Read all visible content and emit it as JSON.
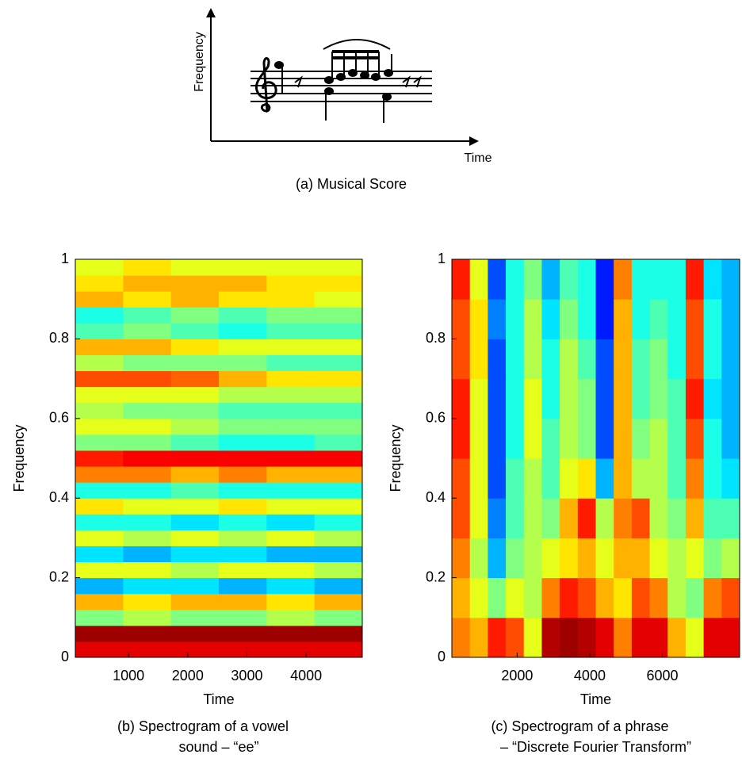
{
  "diagram": {
    "y_label": "Frequency",
    "x_label": "Time",
    "caption": "(a) Musical Score"
  },
  "chart_data": [
    {
      "type": "heatmap",
      "colormap": "jet",
      "zlim": [
        0,
        1
      ],
      "x_label": "Time",
      "y_label": "Frequency",
      "caption": [
        "(b) Spectrogram of a vowel",
        "sound – “ee”"
      ],
      "xlim": [
        100,
        4950
      ],
      "ylim": [
        0,
        1
      ],
      "xticks": [
        1000,
        2000,
        3000,
        4000
      ],
      "yticks": [
        0,
        0.2,
        0.4,
        0.6,
        0.8,
        1
      ],
      "z": [
        [
          0.9,
          0.9,
          0.9,
          0.9,
          0.9,
          0.9
        ],
        [
          0.97,
          0.97,
          0.97,
          0.97,
          0.97,
          0.97
        ],
        [
          0.5,
          0.55,
          0.5,
          0.5,
          0.55,
          0.5
        ],
        [
          0.7,
          0.65,
          0.7,
          0.7,
          0.65,
          0.7
        ],
        [
          0.3,
          0.35,
          0.35,
          0.3,
          0.35,
          0.3
        ],
        [
          0.6,
          0.6,
          0.55,
          0.6,
          0.6,
          0.55
        ],
        [
          0.35,
          0.3,
          0.35,
          0.35,
          0.3,
          0.3
        ],
        [
          0.6,
          0.55,
          0.6,
          0.55,
          0.6,
          0.55
        ],
        [
          0.4,
          0.4,
          0.35,
          0.4,
          0.35,
          0.4
        ],
        [
          0.65,
          0.6,
          0.6,
          0.65,
          0.6,
          0.6
        ],
        [
          0.4,
          0.4,
          0.45,
          0.4,
          0.4,
          0.4
        ],
        [
          0.75,
          0.75,
          0.7,
          0.75,
          0.7,
          0.7
        ],
        [
          0.85,
          0.88,
          0.88,
          0.88,
          0.88,
          0.88
        ],
        [
          0.5,
          0.5,
          0.45,
          0.4,
          0.4,
          0.45
        ],
        [
          0.6,
          0.6,
          0.55,
          0.5,
          0.5,
          0.5
        ],
        [
          0.55,
          0.5,
          0.5,
          0.45,
          0.45,
          0.45
        ],
        [
          0.6,
          0.6,
          0.6,
          0.55,
          0.55,
          0.55
        ],
        [
          0.8,
          0.8,
          0.78,
          0.7,
          0.65,
          0.65
        ],
        [
          0.55,
          0.5,
          0.5,
          0.5,
          0.45,
          0.45
        ],
        [
          0.7,
          0.7,
          0.65,
          0.6,
          0.6,
          0.6
        ],
        [
          0.45,
          0.5,
          0.45,
          0.4,
          0.45,
          0.45
        ],
        [
          0.4,
          0.45,
          0.5,
          0.45,
          0.5,
          0.5
        ],
        [
          0.7,
          0.65,
          0.7,
          0.65,
          0.65,
          0.6
        ],
        [
          0.65,
          0.7,
          0.7,
          0.7,
          0.65,
          0.65
        ],
        [
          0.6,
          0.65,
          0.6,
          0.6,
          0.6,
          0.6
        ]
      ]
    },
    {
      "type": "heatmap",
      "colormap": "jet",
      "zlim": [
        0,
        1
      ],
      "x_label": "Time",
      "y_label": "Frequency",
      "caption": [
        "(c) Spectrogram of a phrase",
        "– “Discrete Fourier Transform”"
      ],
      "xlim": [
        200,
        8130
      ],
      "ylim": [
        0,
        1
      ],
      "xticks": [
        2000,
        4000,
        6000
      ],
      "yticks": [
        0,
        0.2,
        0.4,
        0.6,
        0.8,
        1
      ],
      "z": [
        [
          0.75,
          0.7,
          0.85,
          0.8,
          0.6,
          0.95,
          0.97,
          0.95,
          0.9,
          0.75,
          0.9,
          0.9,
          0.7,
          0.6,
          0.9,
          0.9
        ],
        [
          0.7,
          0.6,
          0.5,
          0.6,
          0.55,
          0.75,
          0.85,
          0.8,
          0.7,
          0.65,
          0.8,
          0.75,
          0.55,
          0.5,
          0.75,
          0.8
        ],
        [
          0.75,
          0.55,
          0.3,
          0.5,
          0.55,
          0.6,
          0.65,
          0.7,
          0.6,
          0.7,
          0.7,
          0.6,
          0.55,
          0.6,
          0.5,
          0.55
        ],
        [
          0.8,
          0.6,
          0.25,
          0.45,
          0.55,
          0.5,
          0.7,
          0.85,
          0.55,
          0.75,
          0.8,
          0.55,
          0.5,
          0.7,
          0.45,
          0.45
        ],
        [
          0.8,
          0.6,
          0.2,
          0.45,
          0.55,
          0.45,
          0.6,
          0.65,
          0.3,
          0.7,
          0.55,
          0.55,
          0.45,
          0.75,
          0.4,
          0.35
        ],
        [
          0.85,
          0.6,
          0.2,
          0.4,
          0.6,
          0.45,
          0.55,
          0.5,
          0.2,
          0.7,
          0.5,
          0.55,
          0.45,
          0.8,
          0.4,
          0.3
        ],
        [
          0.85,
          0.6,
          0.2,
          0.4,
          0.6,
          0.4,
          0.55,
          0.5,
          0.2,
          0.7,
          0.45,
          0.5,
          0.45,
          0.85,
          0.35,
          0.3
        ],
        [
          0.8,
          0.65,
          0.2,
          0.4,
          0.55,
          0.4,
          0.55,
          0.45,
          0.2,
          0.7,
          0.45,
          0.5,
          0.4,
          0.8,
          0.4,
          0.3
        ],
        [
          0.8,
          0.65,
          0.25,
          0.4,
          0.55,
          0.35,
          0.5,
          0.4,
          0.15,
          0.7,
          0.4,
          0.45,
          0.4,
          0.8,
          0.4,
          0.3
        ],
        [
          0.85,
          0.6,
          0.2,
          0.4,
          0.5,
          0.3,
          0.45,
          0.4,
          0.15,
          0.75,
          0.4,
          0.4,
          0.4,
          0.85,
          0.35,
          0.3
        ]
      ]
    }
  ]
}
